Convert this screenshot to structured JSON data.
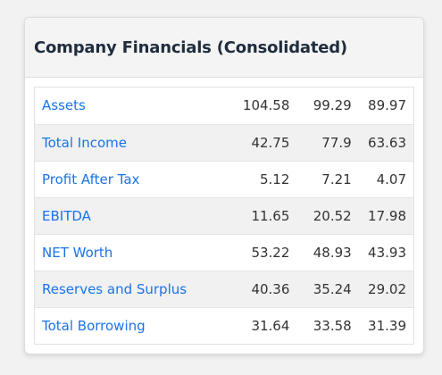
{
  "card": {
    "title": "Company Financials (Consolidated)"
  },
  "colors": {
    "link": "#1a73e8",
    "title": "#1f2d3d",
    "header_bg": "#f4f4f4",
    "stripe_bg": "#f1f1f1"
  },
  "rows": [
    {
      "label": "Assets",
      "values": [
        "104.58",
        "99.29",
        "89.97"
      ]
    },
    {
      "label": "Total Income",
      "values": [
        "42.75",
        "77.9",
        "63.63"
      ]
    },
    {
      "label": "Profit After Tax",
      "values": [
        "5.12",
        "7.21",
        "4.07"
      ]
    },
    {
      "label": "EBITDA",
      "values": [
        "11.65",
        "20.52",
        "17.98"
      ]
    },
    {
      "label": "NET Worth",
      "values": [
        "53.22",
        "48.93",
        "43.93"
      ]
    },
    {
      "label": "Reserves and Surplus",
      "values": [
        "40.36",
        "35.24",
        "29.02"
      ]
    },
    {
      "label": "Total Borrowing",
      "values": [
        "31.64",
        "33.58",
        "31.39"
      ]
    }
  ]
}
